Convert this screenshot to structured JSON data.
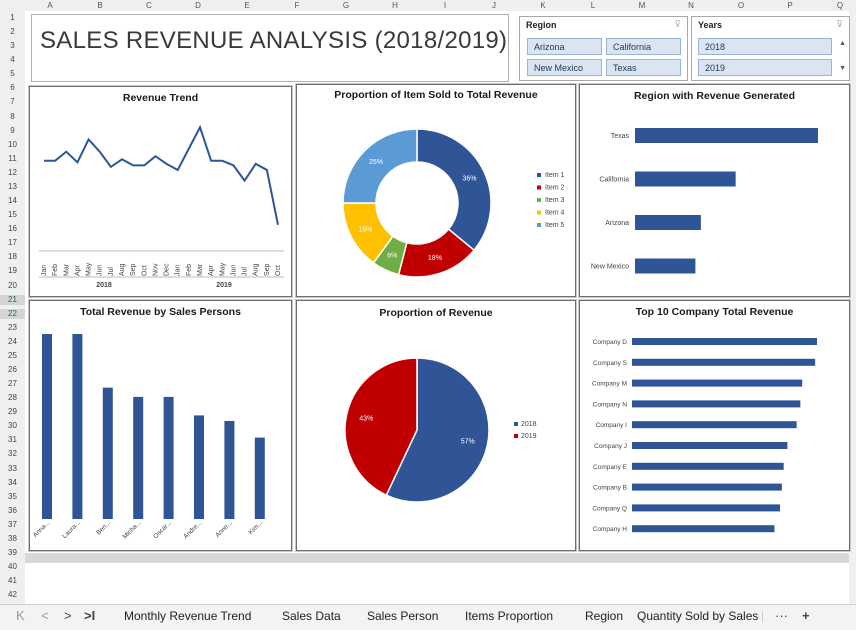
{
  "columns": [
    "A",
    "B",
    "C",
    "D",
    "E",
    "F",
    "G",
    "H",
    "I",
    "J",
    "K",
    "L",
    "M",
    "N",
    "O",
    "P",
    "Q"
  ],
  "rows": [
    "1",
    "2",
    "3",
    "4",
    "5",
    "6",
    "7",
    "8",
    "9",
    "10",
    "11",
    "12",
    "13",
    "14",
    "15",
    "16",
    "17",
    "18",
    "19",
    "20",
    "21",
    "22",
    "23",
    "24",
    "25",
    "26",
    "27",
    "28",
    "29",
    "30",
    "31",
    "32",
    "33",
    "34",
    "35",
    "36",
    "37",
    "38",
    "39",
    "40",
    "41",
    "42"
  ],
  "selected_rows": [
    "21",
    "22"
  ],
  "dashboard_title": "SALES REVENUE ANALYSIS (2018/2019)",
  "region_slicer": {
    "header": "Region",
    "items": [
      "Arizona",
      "California",
      "New Mexico",
      "Texas"
    ]
  },
  "years_slicer": {
    "header": "Years",
    "items": [
      "2018",
      "2019"
    ]
  },
  "chart_data": [
    {
      "type": "line",
      "title": "Revenue Trend",
      "x": [
        "Jan",
        "Feb",
        "Mar",
        "Apr",
        "May",
        "Jun",
        "Jul",
        "Aug",
        "Sep",
        "Oct",
        "Nov",
        "Dec",
        "Jan",
        "Feb",
        "Mar",
        "Apr",
        "May",
        "Jun",
        "Jul",
        "Aug",
        "Sep",
        "Oct"
      ],
      "groups": [
        "2018",
        "2019"
      ],
      "values": [
        48,
        48,
        54,
        47,
        62,
        54,
        44,
        49,
        45,
        45,
        51,
        46,
        42,
        56,
        70,
        48,
        48,
        45,
        35,
        46,
        42,
        6
      ]
    },
    {
      "type": "pie",
      "title": "Proportion of Item Sold to Total Revenue",
      "donut": true,
      "labels": [
        "Item 1",
        "Item 2",
        "Item 3",
        "Item 4",
        "Item 5"
      ],
      "values": [
        36,
        18,
        6,
        15,
        25
      ],
      "value_labels": [
        "36%",
        "18%",
        "6%",
        "15%",
        "25%"
      ],
      "colors": [
        "#2f5597",
        "#c00000",
        "#70ad47",
        "#ffc000",
        "#5b9bd5"
      ]
    },
    {
      "type": "bar",
      "title": "Region with Revenue Generated",
      "orientation": "horizontal",
      "categories": [
        "Texas",
        "California",
        "Arizona",
        "New Mexico"
      ],
      "values": [
        100,
        55,
        36,
        33
      ]
    },
    {
      "type": "bar",
      "title": "Total Revenue by Sales Persons",
      "categories": [
        "Anna...",
        "Laura...",
        "Ben...",
        "Micha...",
        "Oscar...",
        "Andre...",
        "Anne...",
        "Kim..."
      ],
      "values": [
        100,
        100,
        71,
        66,
        66,
        56,
        53,
        44
      ]
    },
    {
      "type": "pie",
      "title": "Proportion of Revenue",
      "labels": [
        "2018",
        "2019"
      ],
      "values": [
        57,
        43
      ],
      "value_labels": [
        "57%",
        "43%"
      ],
      "colors": [
        "#2f5597",
        "#c00000"
      ]
    },
    {
      "type": "bar",
      "title": "Top 10 Company Total Revenue",
      "orientation": "horizontal",
      "categories": [
        "Company D",
        "Company S",
        "Company M",
        "Company N",
        "Company I",
        "Company J",
        "Company E",
        "Company B",
        "Company Q",
        "Company H"
      ],
      "values": [
        100,
        99,
        92,
        91,
        89,
        84,
        82,
        81,
        80,
        77
      ]
    }
  ],
  "tabs": [
    "Monthly Revenue Trend",
    "Sales Data",
    "Sales Person",
    "Items Proportion",
    "Region",
    "Quantity Sold by Sales |"
  ],
  "tab_nav": {
    "first": "K",
    "prev": "<",
    "next": ">",
    "last": ">I",
    "more": "···",
    "add": "+"
  }
}
